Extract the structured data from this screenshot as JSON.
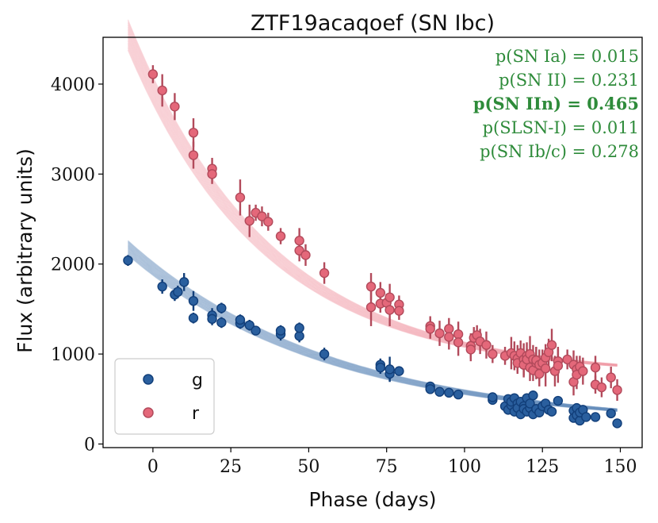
{
  "chart_data": {
    "type": "scatter",
    "title": "ZTF19acaqoef (SN Ibc)",
    "xlabel": "Phase (days)",
    "ylabel": "Flux (arbitrary units)",
    "xlim": [
      -16,
      157
    ],
    "ylim": [
      -40,
      4520
    ],
    "xticks": [
      0,
      25,
      50,
      75,
      100,
      125,
      150
    ],
    "yticks": [
      0,
      1000,
      2000,
      3000,
      4000
    ],
    "legend_position": "lower-left",
    "colors": {
      "g": "#2a5f9e",
      "g_edge": "#123f7a",
      "r": "#e4687a",
      "r_edge": "#b24a5b",
      "model_g": "#5b86b8",
      "model_r": "#f19aa6",
      "prob_text": "#2e8b3a"
    },
    "probabilities": [
      {
        "id": "sn-ia",
        "label": "p(SN Ia) = 0.015",
        "bold": false
      },
      {
        "id": "sn-ii",
        "label": "p(SN II) = 0.231",
        "bold": false
      },
      {
        "id": "sn-iin",
        "label": "p(SN IIn) = 0.465",
        "bold": true
      },
      {
        "id": "slsn-i",
        "label": "p(SLSN-I) = 0.011",
        "bold": false
      },
      {
        "id": "sn-ibc",
        "label": "p(SN Ib/c) = 0.278",
        "bold": false
      }
    ],
    "series": [
      {
        "name": "g",
        "x": [
          -8,
          3,
          7,
          8,
          10,
          13,
          13,
          19,
          19,
          22,
          22,
          28,
          28,
          31,
          33,
          41,
          41,
          47,
          47,
          55,
          73,
          73,
          76,
          76,
          79,
          89,
          89,
          92,
          95,
          98,
          109,
          109,
          113,
          114,
          114,
          115,
          115,
          116,
          116,
          117,
          117,
          118,
          118,
          119,
          119,
          120,
          120,
          121,
          121,
          122,
          122,
          123,
          124,
          125,
          126,
          127,
          128,
          130,
          135,
          135,
          136,
          136,
          137,
          137,
          138,
          139,
          142,
          147,
          149
        ],
        "y": [
          2040,
          1750,
          1660,
          1690,
          1800,
          1590,
          1400,
          1430,
          1390,
          1350,
          1510,
          1340,
          1380,
          1320,
          1260,
          1220,
          1260,
          1200,
          1290,
          1000,
          880,
          850,
          780,
          830,
          810,
          640,
          610,
          580,
          570,
          550,
          490,
          520,
          420,
          500,
          380,
          430,
          470,
          510,
          360,
          450,
          400,
          470,
          330,
          420,
          390,
          510,
          360,
          400,
          450,
          540,
          330,
          390,
          350,
          420,
          450,
          380,
          360,
          480,
          370,
          290,
          320,
          400,
          260,
          350,
          380,
          300,
          300,
          340,
          230
        ],
        "err": [
          60,
          80,
          70,
          70,
          100,
          110,
          60,
          80,
          70,
          60,
          60,
          60,
          60,
          60,
          50,
          70,
          60,
          70,
          60,
          70,
          70,
          70,
          80,
          140,
          50,
          50,
          50,
          40,
          40,
          40,
          40,
          40,
          40,
          40,
          50,
          40,
          50,
          40,
          50,
          40,
          40,
          40,
          40,
          40,
          50,
          40,
          40,
          40,
          40,
          50,
          50,
          40,
          40,
          40,
          40,
          40,
          40,
          40,
          50,
          50,
          40,
          50,
          50,
          40,
          40,
          40,
          40,
          40,
          40
        ]
      },
      {
        "name": "r",
        "x": [
          0,
          3,
          7,
          13,
          13,
          19,
          19,
          28,
          31,
          33,
          35,
          37,
          41,
          47,
          47,
          49,
          55,
          70,
          70,
          73,
          73,
          75,
          76,
          76,
          79,
          79,
          89,
          89,
          92,
          95,
          95,
          98,
          98,
          102,
          102,
          103,
          104,
          105,
          107,
          109,
          113,
          115,
          116,
          117,
          117,
          118,
          119,
          119,
          120,
          120,
          121,
          121,
          122,
          122,
          123,
          123,
          124,
          124,
          125,
          126,
          126,
          127,
          128,
          129,
          130,
          130,
          133,
          135,
          135,
          136,
          136,
          137,
          138,
          142,
          142,
          144,
          147,
          149
        ],
        "y": [
          4110,
          3930,
          3750,
          3460,
          3210,
          3060,
          3000,
          2740,
          2480,
          2570,
          2530,
          2470,
          2310,
          2260,
          2150,
          2100,
          1900,
          1750,
          1520,
          1680,
          1560,
          1570,
          1490,
          1630,
          1550,
          1480,
          1310,
          1280,
          1230,
          1280,
          1190,
          1220,
          1130,
          1090,
          1050,
          1180,
          1210,
          1140,
          1100,
          1000,
          980,
          1010,
          980,
          950,
          900,
          1010,
          940,
          880,
          980,
          940,
          1000,
          850,
          940,
          820,
          900,
          930,
          880,
          780,
          900,
          960,
          840,
          1020,
          1100,
          810,
          920,
          870,
          940,
          880,
          690,
          830,
          770,
          860,
          810,
          660,
          850,
          630,
          740,
          600
        ],
        "err": [
          100,
          180,
          150,
          160,
          150,
          120,
          110,
          200,
          180,
          90,
          110,
          100,
          90,
          140,
          120,
          120,
          120,
          150,
          210,
          120,
          100,
          100,
          180,
          150,
          100,
          100,
          110,
          110,
          140,
          120,
          140,
          140,
          150,
          140,
          130,
          120,
          110,
          140,
          150,
          100,
          100,
          180,
          160,
          150,
          120,
          140,
          180,
          140,
          150,
          120,
          200,
          150,
          160,
          120,
          180,
          150,
          170,
          140,
          150,
          150,
          200,
          150,
          180,
          170,
          160,
          190,
          110,
          160,
          150,
          150,
          160,
          120,
          150,
          100,
          130,
          110,
          120,
          120
        ]
      }
    ],
    "models": [
      {
        "name": "g",
        "y0": 1950,
        "floor": 200,
        "tau": 65
      },
      {
        "name": "r",
        "y0": 3930,
        "floor": 760,
        "tau": 45
      }
    ]
  }
}
